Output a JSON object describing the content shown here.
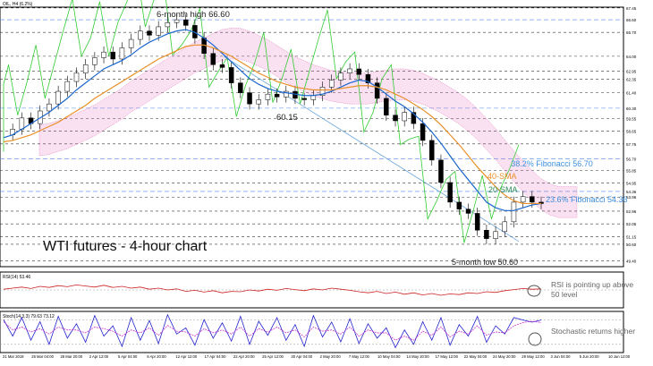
{
  "header": {
    "symbol_line": "OIL, H4 (6.2%)",
    "rsi_line": "RSI(14) 53.46",
    "stoch_line": "Stoch(14,3,3) 79.63 73.12"
  },
  "colors": {
    "price_candles": "#cc0000",
    "sma20": "#1a66cc",
    "sma40": "#e8902a",
    "ma_short": "#2e8b57",
    "chikou": "#33cc33",
    "cloud": "#e05bb0",
    "fib_line": "#4a86e8",
    "rsi": "#cc2222",
    "stoch_k": "#2222cc",
    "stoch_d": "#cc33cc",
    "trendline": "#6fa8dc",
    "annotation_text": "#222222",
    "fib_text": "#3c8fe0",
    "sma40_text": "#e8902a"
  },
  "annotations": {
    "six_month_high": "6-month high 66.60",
    "low_60": "60.15",
    "fib_382": "38.2% Fibonacci 56.70",
    "sma40_label": "40-SMA",
    "sma20_label": "20-SMA",
    "fib_236": "23.6% Fibonacci 54.36",
    "five_month_low": "5-month low 50.60",
    "chart_title": "WTI futures - 4-hour chart",
    "rsi_note": "RSI is pointing up above 50 level",
    "stoch_note": "Stochastic returns higher"
  },
  "chart_data": {
    "type": "line",
    "title": "WTI futures - 4-hour chart",
    "x_tick_labels": [
      "21 Mar 2019",
      "26 Mar 04:00",
      "28 Mar 20:00",
      "2 Apr 12:00",
      "5 Apr 04:00",
      "9 Apr 20:00",
      "12 Apr 12:00",
      "17 Apr 04:00",
      "22 Apr 20:00",
      "25 Apr 12:00",
      "30 Apr 04:00",
      "2 May 20:00",
      "7 May 12:00",
      "10 May 04:00",
      "14 May 20:00",
      "17 May 12:00",
      "22 May 04:00",
      "24 May 20:00",
      "29 May 12:00",
      "3 Jun 04:00",
      "5 Jun 20:00",
      "10 Jun 12:00"
    ],
    "y_tick_labels": [
      "67.45",
      "66.60",
      "65.70",
      "64.00",
      "62.95",
      "62.35",
      "61.40",
      "60.30",
      "59.55",
      "58.65",
      "57.75",
      "56.70",
      "55.85",
      "54.95",
      "54.36",
      "53.96",
      "52.96",
      "52.05",
      "51.15",
      "50.60",
      "49.40"
    ],
    "price_ylim": [
      49.0,
      67.5
    ],
    "series": [
      {
        "name": "Price",
        "values": [
          58.4,
          58.8,
          59.6,
          59.2,
          60.1,
          60.6,
          61.5,
          62.2,
          62.8,
          63.4,
          63.9,
          64.3,
          63.8,
          64.6,
          65.2,
          65.8,
          65.5,
          66.1,
          66.4,
          66.6,
          66.2,
          65.3,
          64.2,
          63.4,
          63.2,
          62.1,
          61.4,
          60.6,
          60.9,
          61.3,
          61.1,
          61.5,
          61.0,
          60.9,
          61.2,
          61.8,
          62.3,
          62.8,
          63.1,
          62.7,
          62.1,
          61.0,
          59.8,
          59.4,
          60.0,
          59.2,
          58.0,
          56.6,
          55.0,
          53.6,
          53.1,
          52.8,
          51.6,
          51.0,
          51.5,
          52.2,
          53.6,
          54.0,
          53.6,
          53.5
        ]
      },
      {
        "name": "20-SMA",
        "values": [
          58.2,
          58.4,
          58.8,
          59.2,
          59.6,
          60.0,
          60.5,
          61.0,
          61.6,
          62.1,
          62.6,
          63.1,
          63.4,
          63.7,
          64.1,
          64.6,
          65.0,
          65.3,
          65.6,
          65.8,
          65.9,
          65.7,
          65.3,
          64.8,
          64.2,
          63.6,
          63.0,
          62.4,
          62.0,
          61.7,
          61.5,
          61.4,
          61.3,
          61.2,
          61.2,
          61.3,
          61.5,
          61.8,
          62.1,
          62.3,
          62.2,
          61.8,
          61.3,
          60.8,
          60.4,
          59.9,
          59.3,
          58.6,
          57.8,
          56.9,
          56.0,
          55.2,
          54.4,
          53.6,
          53.2,
          53.0,
          53.0,
          53.2,
          53.4,
          53.5
        ]
      },
      {
        "name": "40-SMA",
        "values": [
          57.9,
          58.0,
          58.2,
          58.4,
          58.7,
          59.0,
          59.3,
          59.7,
          60.1,
          60.5,
          61.0,
          61.4,
          61.8,
          62.2,
          62.6,
          63.0,
          63.4,
          63.8,
          64.1,
          64.4,
          64.7,
          64.8,
          64.8,
          64.6,
          64.3,
          64.0,
          63.6,
          63.2,
          62.8,
          62.5,
          62.2,
          62.0,
          61.8,
          61.7,
          61.6,
          61.6,
          61.6,
          61.7,
          61.8,
          61.9,
          61.9,
          61.8,
          61.6,
          61.3,
          61.0,
          60.6,
          60.2,
          59.7,
          59.1,
          58.4,
          57.7,
          56.9,
          56.1,
          55.4,
          54.7,
          54.1,
          53.7,
          53.5,
          53.5,
          53.5
        ]
      }
    ],
    "rsi_ylim": [
      0,
      100
    ],
    "rsi_values": [
      52,
      55,
      58,
      54,
      60,
      57,
      62,
      59,
      64,
      61,
      58,
      63,
      57,
      60,
      55,
      58,
      52,
      55,
      50,
      53,
      46,
      49,
      44,
      48,
      42,
      46,
      45,
      50,
      47,
      52,
      49,
      54,
      51,
      48,
      53,
      50,
      55,
      52,
      49,
      45,
      42,
      46,
      40,
      44,
      38,
      42,
      36,
      40,
      35,
      39,
      37,
      42,
      40,
      45,
      43,
      48,
      51,
      54,
      52,
      53
    ],
    "stoch_ylim": [
      0,
      100
    ],
    "stoch_k": [
      80,
      40,
      85,
      30,
      75,
      20,
      88,
      35,
      70,
      25,
      90,
      40,
      65,
      15,
      85,
      30,
      78,
      22,
      92,
      45,
      60,
      18,
      80,
      35,
      72,
      28,
      88,
      20,
      76,
      42,
      85,
      30,
      68,
      15,
      90,
      38,
      74,
      26,
      82,
      22,
      70,
      35,
      60,
      12,
      55,
      20,
      75,
      30,
      85,
      18,
      68,
      40,
      88,
      25,
      65,
      45,
      85,
      79,
      74,
      79
    ],
    "stoch_d": [
      75,
      55,
      62,
      50,
      58,
      45,
      62,
      55,
      55,
      48,
      62,
      58,
      52,
      40,
      55,
      48,
      60,
      42,
      66,
      52,
      50,
      40,
      58,
      48,
      55,
      45,
      62,
      40,
      58,
      50,
      62,
      48,
      55,
      38,
      62,
      52,
      55,
      45,
      62,
      40,
      55,
      48,
      48,
      30,
      40,
      30,
      52,
      42,
      62,
      38,
      52,
      45,
      65,
      42,
      50,
      48,
      65,
      73,
      76,
      73
    ]
  }
}
